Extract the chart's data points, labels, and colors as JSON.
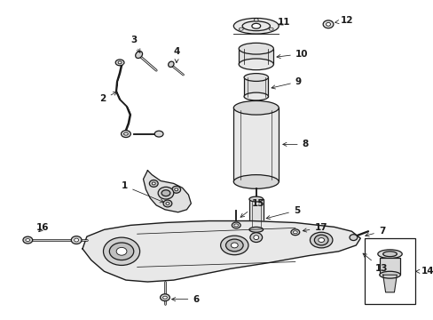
{
  "bg_color": "#ffffff",
  "line_color": "#1a1a1a",
  "fig_width": 4.89,
  "fig_height": 3.6,
  "dpi": 100,
  "label_fontsize": 7.5,
  "lw": 0.9
}
